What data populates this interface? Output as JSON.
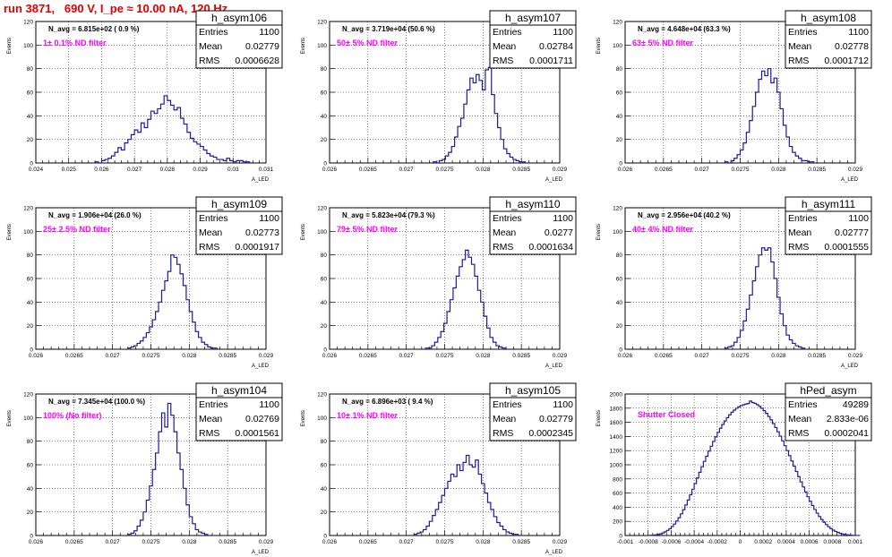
{
  "page": {
    "title": "run 3871,   690 V, I_pe ≈ 10.00 nA, 120 Hz"
  },
  "chart_data": [
    {
      "type": "histogram",
      "name": "h_asym106",
      "annotation": "N_avg = 6.815e+02 ( 0.9 %)",
      "filter_label": "1± 0.1% ND filter",
      "stats": {
        "entries": "1100",
        "mean": "0.02779",
        "rms": "0.0006628"
      },
      "ylabel": "Events",
      "xlabel": "A_LED",
      "xlim": [
        0.024,
        0.031
      ],
      "ylim": [
        0,
        120
      ],
      "xticks": [
        "0.024",
        "0.025",
        "0.026",
        "0.027",
        "0.028",
        "0.029",
        "0.03",
        "0.031"
      ],
      "yticks": [
        "0",
        "20",
        "40",
        "60",
        "80",
        "100",
        "120"
      ],
      "bins": {
        "x0": 0.0258,
        "width": 0.0001,
        "counts": [
          1,
          0,
          2,
          3,
          4,
          6,
          9,
          13,
          11,
          17,
          20,
          24,
          28,
          26,
          34,
          30,
          37,
          44,
          42,
          46,
          50,
          57,
          53,
          49,
          45,
          47,
          38,
          33,
          26,
          21,
          18,
          16,
          14,
          11,
          8,
          6,
          5,
          3,
          3,
          2,
          4,
          2,
          1,
          2,
          2,
          1,
          1
        ]
      }
    },
    {
      "type": "histogram",
      "name": "h_asym107",
      "annotation": "N_avg = 3.719e+04 (50.6 %)",
      "filter_label": "50± 5% ND filter",
      "stats": {
        "entries": "1100",
        "mean": "0.02784",
        "rms": "0.0001711"
      },
      "ylabel": "Events",
      "xlabel": "A_LED",
      "xlim": [
        0.026,
        0.029
      ],
      "ylim": [
        0,
        120
      ],
      "xticks": [
        "0.026",
        "0.0265",
        "0.027",
        "0.0275",
        "0.028",
        "0.0285",
        "0.029"
      ],
      "yticks": [
        "0",
        "20",
        "40",
        "60",
        "80",
        "100",
        "120"
      ],
      "bins": {
        "x0": 0.02735,
        "width": 4e-05,
        "counts": [
          1,
          0,
          2,
          3,
          6,
          9,
          14,
          22,
          31,
          38,
          50,
          62,
          72,
          68,
          75,
          70,
          62,
          79,
          81,
          58,
          42,
          30,
          20,
          12,
          8,
          5,
          3,
          2,
          1,
          1
        ]
      }
    },
    {
      "type": "histogram",
      "name": "h_asym108",
      "annotation": "N_avg = 4.648e+04 (63.3 %)",
      "filter_label": "63± 5% ND filter",
      "stats": {
        "entries": "1100",
        "mean": "0.02778",
        "rms": "0.0001712"
      },
      "ylabel": "Events",
      "xlabel": "A_LED",
      "xlim": [
        0.026,
        0.029
      ],
      "ylim": [
        0,
        120
      ],
      "xticks": [
        "0.026",
        "0.0265",
        "0.027",
        "0.0275",
        "0.028",
        "0.0285",
        "0.029"
      ],
      "yticks": [
        "0",
        "20",
        "40",
        "60",
        "80",
        "100",
        "120"
      ],
      "bins": {
        "x0": 0.0273,
        "width": 4e-05,
        "counts": [
          1,
          0,
          2,
          4,
          7,
          11,
          17,
          26,
          36,
          48,
          60,
          71,
          78,
          74,
          80,
          68,
          72,
          60,
          46,
          32,
          22,
          14,
          9,
          6,
          4,
          2,
          2,
          1,
          1
        ]
      }
    },
    {
      "type": "histogram",
      "name": "h_asym109",
      "annotation": "N_avg = 1.906e+04 (26.0 %)",
      "filter_label": "25± 2.5% ND filter",
      "stats": {
        "entries": "1100",
        "mean": "0.02773",
        "rms": "0.0001917"
      },
      "ylabel": "Events",
      "xlabel": "A_LED",
      "xlim": [
        0.026,
        0.029
      ],
      "ylim": [
        0,
        120
      ],
      "xticks": [
        "0.026",
        "0.0265",
        "0.027",
        "0.0275",
        "0.028",
        "0.0285",
        "0.029"
      ],
      "yticks": [
        "0",
        "20",
        "40",
        "60",
        "80",
        "100",
        "120"
      ],
      "bins": {
        "x0": 0.0272,
        "width": 4e-05,
        "counts": [
          1,
          2,
          3,
          5,
          7,
          10,
          14,
          19,
          25,
          32,
          40,
          50,
          58,
          66,
          80,
          78,
          72,
          64,
          54,
          42,
          32,
          23,
          15,
          10,
          6,
          4,
          2,
          1,
          1
        ]
      }
    },
    {
      "type": "histogram",
      "name": "h_asym110",
      "annotation": "N_avg = 5.823e+04 (79.3 %)",
      "filter_label": "79± 5% ND filter",
      "stats": {
        "entries": "1100",
        "mean": "0.0277",
        "rms": "0.0001634"
      },
      "ylabel": "Events",
      "xlabel": "A_LED",
      "xlim": [
        0.026,
        0.029
      ],
      "ylim": [
        0,
        120
      ],
      "xticks": [
        "0.026",
        "0.0265",
        "0.027",
        "0.0275",
        "0.028",
        "0.0285",
        "0.029"
      ],
      "yticks": [
        "0",
        "20",
        "40",
        "60",
        "80",
        "100",
        "120"
      ],
      "bins": {
        "x0": 0.02725,
        "width": 4e-05,
        "counts": [
          1,
          1,
          3,
          6,
          10,
          15,
          22,
          32,
          42,
          52,
          62,
          70,
          76,
          84,
          78,
          72,
          62,
          50,
          40,
          28,
          18,
          10,
          6,
          3,
          2,
          1
        ]
      }
    },
    {
      "type": "histogram",
      "name": "h_asym111",
      "annotation": "N_avg = 2.956e+04 (40.2 %)",
      "filter_label": "40± 4% ND filter",
      "stats": {
        "entries": "1100",
        "mean": "0.02777",
        "rms": "0.0001555"
      },
      "ylabel": "Events",
      "xlabel": "A_LED",
      "xlim": [
        0.026,
        0.029
      ],
      "ylim": [
        0,
        120
      ],
      "xticks": [
        "0.026",
        "0.0265",
        "0.027",
        "0.0275",
        "0.028",
        "0.0285",
        "0.029"
      ],
      "yticks": [
        "0",
        "20",
        "40",
        "60",
        "80",
        "100",
        "120"
      ],
      "bins": {
        "x0": 0.0273,
        "width": 4e-05,
        "counts": [
          1,
          2,
          3,
          6,
          10,
          16,
          24,
          34,
          46,
          58,
          70,
          80,
          86,
          84,
          86,
          74,
          60,
          44,
          30,
          20,
          12,
          8,
          5,
          3,
          2,
          1
        ]
      }
    },
    {
      "type": "histogram",
      "name": "h_asym104",
      "annotation": "N_avg = 7.345e+04 (100.0 %)",
      "filter_label": "100% (No filter)",
      "stats": {
        "entries": "1100",
        "mean": "0.02769",
        "rms": "0.0001561"
      },
      "ylabel": "Events",
      "xlabel": "A_LED",
      "xlim": [
        0.026,
        0.029
      ],
      "ylim": [
        0,
        120
      ],
      "xticks": [
        "0.026",
        "0.0265",
        "0.027",
        "0.0275",
        "0.028",
        "0.0285",
        "0.029"
      ],
      "yticks": [
        "0",
        "20",
        "40",
        "60",
        "80",
        "100",
        "120"
      ],
      "bins": {
        "x0": 0.0272,
        "width": 4e-05,
        "counts": [
          1,
          2,
          4,
          8,
          13,
          20,
          30,
          42,
          56,
          70,
          88,
          104,
          92,
          112,
          102,
          88,
          70,
          56,
          40,
          26,
          16,
          10,
          5,
          3,
          2,
          1
        ]
      }
    },
    {
      "type": "histogram",
      "name": "h_asym105",
      "annotation": "N_avg = 6.896e+03 ( 9.4 %)",
      "filter_label": "10± 1% ND filter",
      "stats": {
        "entries": "1100",
        "mean": "0.02779",
        "rms": "0.0002345"
      },
      "ylabel": "Events",
      "xlabel": "A_LED",
      "xlim": [
        0.026,
        0.029
      ],
      "ylim": [
        0,
        120
      ],
      "xticks": [
        "0.026",
        "0.0265",
        "0.027",
        "0.0275",
        "0.028",
        "0.0285",
        "0.029"
      ],
      "yticks": [
        "0",
        "20",
        "40",
        "60",
        "80",
        "100",
        "120"
      ],
      "bins": {
        "x0": 0.0271,
        "width": 4e-05,
        "counts": [
          1,
          2,
          3,
          5,
          8,
          12,
          17,
          22,
          28,
          34,
          40,
          46,
          52,
          50,
          60,
          55,
          62,
          68,
          60,
          58,
          64,
          52,
          44,
          36,
          28,
          22,
          16,
          11,
          8,
          5,
          3,
          2,
          1,
          1
        ]
      }
    },
    {
      "type": "histogram",
      "name": "hPed_asym",
      "annotation": "",
      "filter_label": "Shutter Closed",
      "stats": {
        "entries": "49289",
        "mean": "2.833e-06",
        "rms": "0.0002041"
      },
      "ylabel": "Events",
      "xlabel": "",
      "xlim": [
        -0.001,
        0.001
      ],
      "ylim": [
        0,
        2000
      ],
      "xticks": [
        "-0.001",
        "-0.0008",
        "-0.0006",
        "-0.0004",
        "-0.0002",
        "0",
        "0.0002",
        "0.0004",
        "0.0006",
        "0.0008",
        "0.001"
      ],
      "yticks": [
        "0",
        "200",
        "400",
        "600",
        "800",
        "1000",
        "1200",
        "1400",
        "1600",
        "1800",
        "2000"
      ],
      "bins": {
        "x0": -0.0008,
        "width": 2e-05,
        "counts": [
          2,
          4,
          6,
          10,
          16,
          24,
          36,
          52,
          72,
          96,
          126,
          162,
          204,
          252,
          306,
          366,
          432,
          502,
          576,
          654,
          734,
          814,
          894,
          972,
          1048,
          1120,
          1192,
          1262,
          1330,
          1396,
          1458,
          1516,
          1570,
          1620,
          1666,
          1706,
          1742,
          1772,
          1798,
          1820,
          1836,
          1848,
          1858,
          1866,
          1900,
          1880,
          1868,
          1850,
          1826,
          1798,
          1764,
          1726,
          1682,
          1634,
          1582,
          1526,
          1466,
          1404,
          1338,
          1270,
          1200,
          1128,
          1054,
          980,
          906,
          832,
          758,
          686,
          616,
          548,
          484,
          424,
          368,
          316,
          268,
          226,
          188,
          154,
          124,
          98,
          76,
          58,
          44,
          32,
          22,
          15,
          10,
          6,
          4,
          2,
          1,
          1
        ]
      }
    }
  ]
}
